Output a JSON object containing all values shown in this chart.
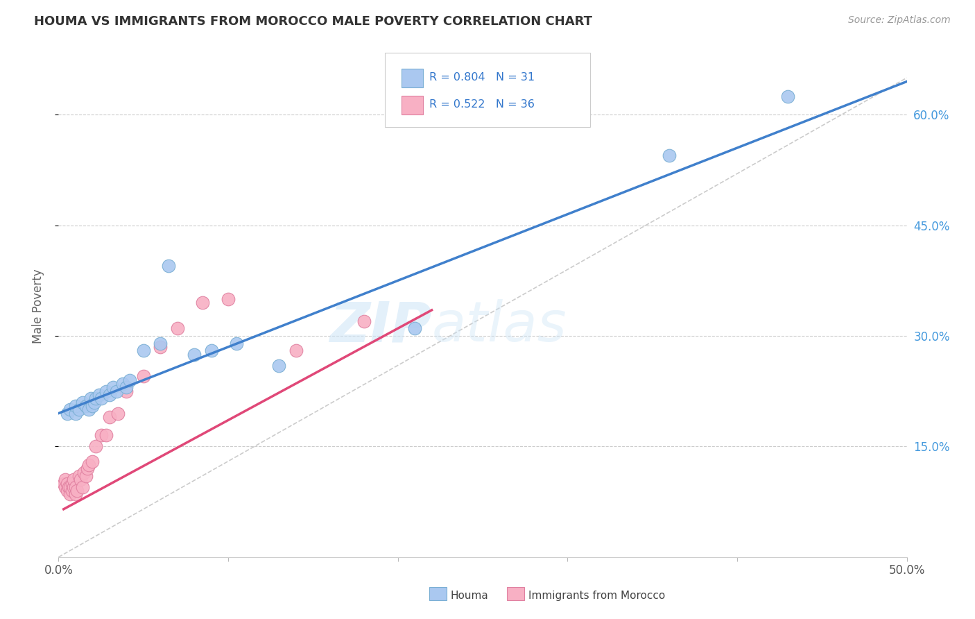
{
  "title": "HOUMA VS IMMIGRANTS FROM MOROCCO MALE POVERTY CORRELATION CHART",
  "source": "Source: ZipAtlas.com",
  "ylabel": "Male Poverty",
  "xlim": [
    0,
    0.5
  ],
  "ylim": [
    0.0,
    0.68
  ],
  "xtick_positions": [
    0.0,
    0.1,
    0.2,
    0.3,
    0.4,
    0.5
  ],
  "xtick_labels_show": [
    "0.0%",
    "",
    "",
    "",
    "",
    "50.0%"
  ],
  "ytick_positions": [
    0.15,
    0.3,
    0.45,
    0.6
  ],
  "ytick_labels": [
    "15.0%",
    "30.0%",
    "45.0%",
    "60.0%"
  ],
  "houma_color": "#aac8f0",
  "houma_edge_color": "#7aafd4",
  "morocco_color": "#f8b0c4",
  "morocco_edge_color": "#e080a0",
  "houma_line_color": "#4080cc",
  "morocco_line_color": "#e04878",
  "legend_R1": "R = 0.804",
  "legend_N1": "N = 31",
  "legend_R2": "R = 0.522",
  "legend_N2": "N = 36",
  "legend_label1": "Houma",
  "legend_label2": "Immigrants from Morocco",
  "watermark_zip": "ZIP",
  "watermark_atlas": "atlas",
  "houma_x": [
    0.005,
    0.007,
    0.01,
    0.01,
    0.012,
    0.014,
    0.016,
    0.018,
    0.019,
    0.02,
    0.021,
    0.022,
    0.024,
    0.025,
    0.028,
    0.03,
    0.032,
    0.034,
    0.038,
    0.04,
    0.042,
    0.05,
    0.06,
    0.065,
    0.08,
    0.09,
    0.105,
    0.13,
    0.21,
    0.36,
    0.43
  ],
  "houma_y": [
    0.195,
    0.2,
    0.195,
    0.205,
    0.2,
    0.21,
    0.205,
    0.2,
    0.215,
    0.205,
    0.21,
    0.215,
    0.22,
    0.215,
    0.225,
    0.22,
    0.23,
    0.225,
    0.235,
    0.23,
    0.24,
    0.28,
    0.29,
    0.395,
    0.275,
    0.28,
    0.29,
    0.26,
    0.31,
    0.545,
    0.625
  ],
  "morocco_x": [
    0.003,
    0.004,
    0.004,
    0.005,
    0.005,
    0.006,
    0.007,
    0.007,
    0.008,
    0.008,
    0.009,
    0.009,
    0.01,
    0.01,
    0.011,
    0.012,
    0.013,
    0.014,
    0.015,
    0.016,
    0.017,
    0.018,
    0.02,
    0.022,
    0.025,
    0.028,
    0.03,
    0.035,
    0.04,
    0.05,
    0.06,
    0.07,
    0.085,
    0.1,
    0.14,
    0.18
  ],
  "morocco_y": [
    0.1,
    0.095,
    0.105,
    0.09,
    0.1,
    0.095,
    0.085,
    0.095,
    0.09,
    0.1,
    0.095,
    0.105,
    0.095,
    0.085,
    0.09,
    0.11,
    0.105,
    0.095,
    0.115,
    0.11,
    0.12,
    0.125,
    0.13,
    0.15,
    0.165,
    0.165,
    0.19,
    0.195,
    0.225,
    0.245,
    0.285,
    0.31,
    0.345,
    0.35,
    0.28,
    0.32
  ],
  "houma_line_x0": 0.0,
  "houma_line_y0": 0.195,
  "houma_line_x1": 0.5,
  "houma_line_y1": 0.645,
  "morocco_line_x0": 0.003,
  "morocco_line_y0": 0.065,
  "morocco_line_x1": 0.22,
  "morocco_line_y1": 0.335,
  "ref_line_x0": 0.0,
  "ref_line_y0": 0.0,
  "ref_line_x1": 0.5,
  "ref_line_y1": 0.65,
  "background_color": "#ffffff",
  "grid_color": "#cccccc",
  "title_color": "#333333",
  "axis_label_color": "#666666",
  "right_ytick_color": "#4499dd",
  "legend_text_color": "#3377cc"
}
